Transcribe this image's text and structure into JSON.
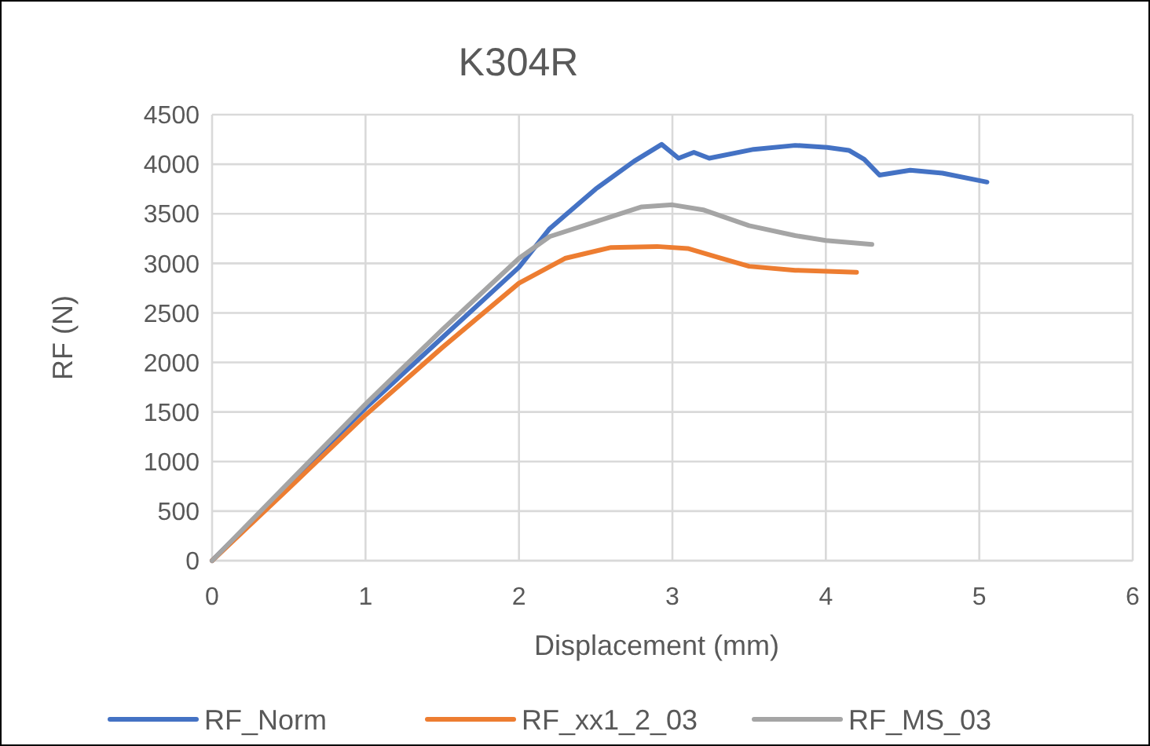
{
  "chart_data": {
    "type": "line",
    "title": "K304R",
    "xlabel": "Displacement (mm)",
    "ylabel": "RF (N)",
    "xlim": [
      0,
      6
    ],
    "xticks": [
      0,
      1,
      2,
      3,
      4,
      5,
      6
    ],
    "ylim": [
      0,
      4500
    ],
    "yticks": [
      0,
      500,
      1000,
      1500,
      2000,
      2500,
      3000,
      3500,
      4000,
      4500
    ],
    "grid": true,
    "legend": "bottom",
    "marker": "none",
    "line_style": "solid",
    "series": [
      {
        "name": "RF_Norm",
        "color": "#4472c4",
        "x": [
          0,
          1,
          1.5,
          2,
          2.2,
          2.5,
          2.75,
          2.93,
          3.04,
          3.14,
          3.24,
          3.53,
          3.8,
          4.01,
          4.15,
          4.25,
          4.35,
          4.55,
          4.76,
          5.05
        ],
        "values": [
          0,
          1540,
          2250,
          2960,
          3350,
          3750,
          4030,
          4200,
          4060,
          4120,
          4060,
          4150,
          4190,
          4170,
          4140,
          4050,
          3890,
          3940,
          3910,
          3820
        ]
      },
      {
        "name": "RF_xx1_2_03",
        "color": "#ed7d31",
        "x": [
          0,
          0.5,
          1,
          1.5,
          2,
          2.3,
          2.6,
          2.9,
          3.1,
          3.3,
          3.5,
          3.8,
          4.2
        ],
        "values": [
          0,
          730,
          1470,
          2150,
          2800,
          3050,
          3160,
          3170,
          3150,
          3060,
          2970,
          2930,
          2910
        ]
      },
      {
        "name": "RF_MS_03",
        "color": "#a5a5a5",
        "x": [
          0,
          0.5,
          1,
          1.5,
          2,
          2.2,
          2.5,
          2.8,
          3,
          3.2,
          3.5,
          3.8,
          4,
          4.3
        ],
        "values": [
          0,
          790,
          1580,
          2330,
          3050,
          3270,
          3420,
          3570,
          3590,
          3540,
          3380,
          3280,
          3230,
          3190
        ]
      }
    ]
  }
}
